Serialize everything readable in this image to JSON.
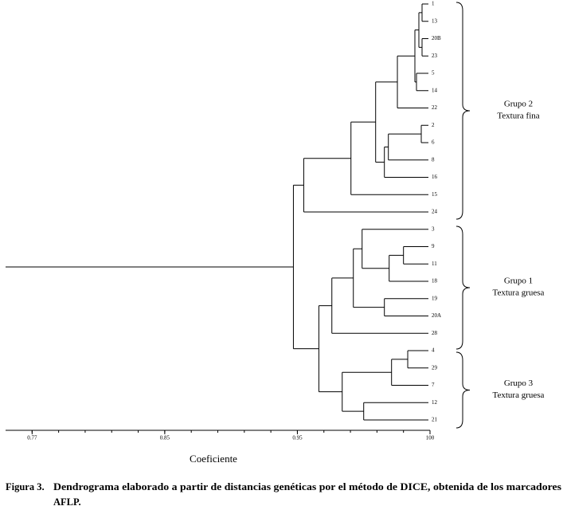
{
  "chart_data": {
    "type": "dendrogram",
    "xlabel": "Coeficiente",
    "caption": {
      "label": "Figura 3.",
      "lines": [
        "Dendrograma elaborado a partir de distancias genéticas por el método de DICE, obtenida de los marcadores",
        "AFLP."
      ]
    },
    "xlim": [
      0.84,
      1.0
    ],
    "xticks": [
      {
        "value": 0.85,
        "label": "0.77"
      },
      {
        "value": 0.9,
        "label": "0.85"
      },
      0.95,
      {
        "value": 1.0,
        "label": "100"
      }
    ],
    "minor_xticks": [
      0.85,
      0.86,
      0.87,
      0.88,
      0.89,
      0.9,
      0.91,
      0.92,
      0.93,
      0.94,
      0.95,
      0.96,
      0.97,
      0.98,
      0.99,
      1.0
    ],
    "groups": [
      {
        "lines": [
          "Grupo 2",
          "Textura fina"
        ]
      },
      {
        "lines": [
          "Grupo 1",
          "Textura gruesa"
        ]
      },
      {
        "lines": [
          "Grupo 3",
          "Textura gruesa"
        ]
      }
    ],
    "tree": {
      "height": 0.9485,
      "children": [
        {
          "height": 0.9524,
          "children": [
            {
              "height": 0.9702,
              "children": [
                {
                  "height": 0.9795,
                  "children": [
                    {
                      "height": 0.9877,
                      "children": [
                        {
                          "height": 0.9943,
                          "children": [
                            {
                              "height": 0.9958,
                              "children": [
                                {
                                  "height": 0.997,
                                  "children": [
                                    {
                                      "label": "1"
                                    },
                                    {
                                      "label": "13"
                                    }
                                  ]
                                },
                                {
                                  "height": 0.997,
                                  "children": [
                                    {
                                      "label": "20B"
                                    },
                                    {
                                      "label": "23"
                                    }
                                  ]
                                }
                              ]
                            },
                            {
                              "height": 0.9949,
                              "children": [
                                {
                                  "label": "5"
                                },
                                {
                                  "label": "14"
                                }
                              ]
                            }
                          ]
                        },
                        {
                          "label": "22"
                        }
                      ]
                    },
                    {
                      "height": 0.9828,
                      "children": [
                        {
                          "height": 0.9843,
                          "children": [
                            {
                              "height": 0.9967,
                              "children": [
                                {
                                  "label": "2"
                                },
                                {
                                  "label": "6"
                                }
                              ]
                            },
                            {
                              "label": "8"
                            }
                          ]
                        },
                        {
                          "label": "16"
                        }
                      ]
                    }
                  ]
                },
                {
                  "label": "15"
                }
              ]
            },
            {
              "label": "24"
            }
          ]
        },
        {
          "height": 0.9581,
          "children": [
            {
              "height": 0.963,
              "children": [
                {
                  "height": 0.9711,
                  "children": [
                    {
                      "height": 0.9744,
                      "children": [
                        {
                          "label": "3"
                        },
                        {
                          "height": 0.9846,
                          "children": [
                            {
                              "height": 0.99,
                              "children": [
                                {
                                  "label": "9"
                                },
                                {
                                  "label": "11"
                                }
                              ]
                            },
                            {
                              "label": "18"
                            }
                          ]
                        }
                      ]
                    },
                    {
                      "height": 0.9828,
                      "children": [
                        {
                          "label": "19"
                        },
                        {
                          "label": "20A"
                        }
                      ]
                    }
                  ]
                },
                {
                  "label": "28"
                }
              ]
            },
            {
              "height": 0.9669,
              "children": [
                {
                  "height": 0.9855,
                  "children": [
                    {
                      "height": 0.9916,
                      "children": [
                        {
                          "label": "4"
                        },
                        {
                          "label": "29"
                        }
                      ]
                    },
                    {
                      "label": "7"
                    }
                  ]
                },
                {
                  "height": 0.975,
                  "children": [
                    {
                      "label": "12"
                    },
                    {
                      "label": "21"
                    }
                  ]
                }
              ]
            }
          ]
        }
      ]
    }
  }
}
